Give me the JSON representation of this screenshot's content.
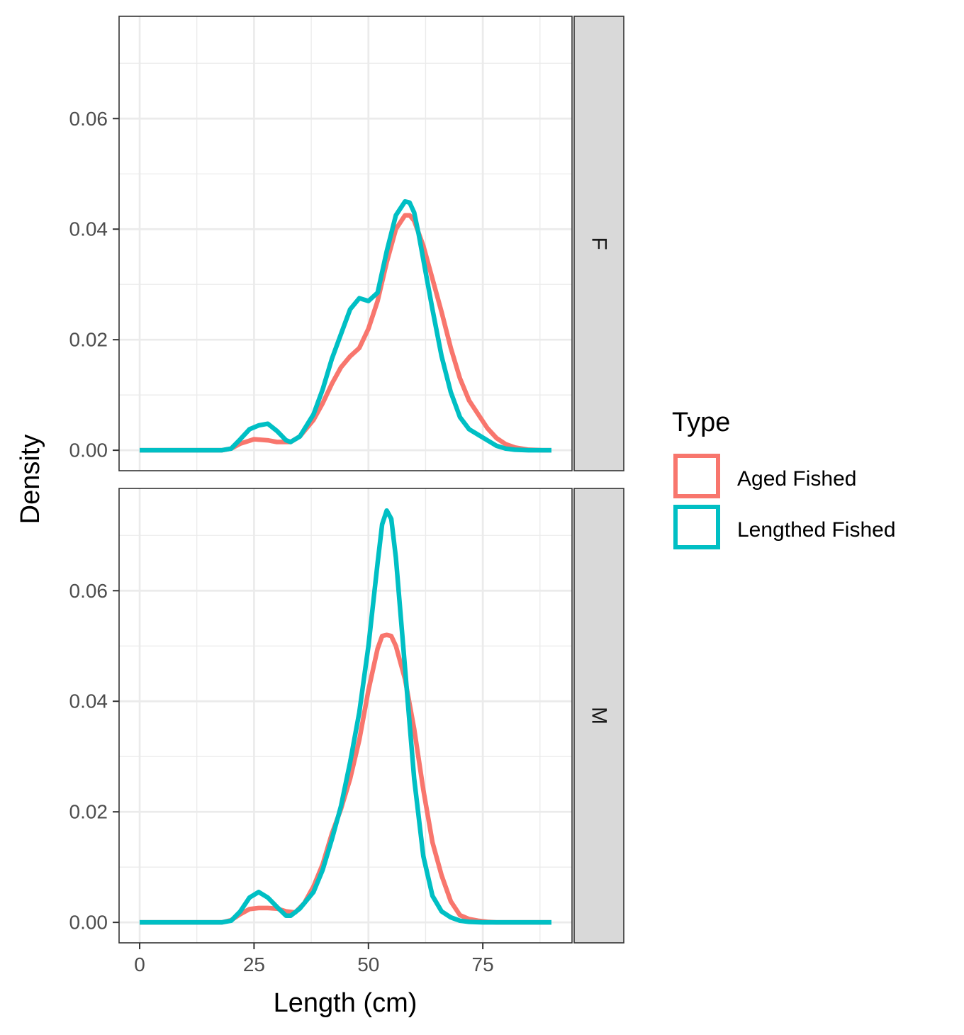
{
  "chart_data": {
    "type": "line",
    "subtype": "density",
    "xlabel": "Length (cm)",
    "ylabel": "Density",
    "xlim": [
      -4.5,
      94.5
    ],
    "x_ticks": [
      0,
      25,
      50,
      75
    ],
    "x_tick_labels": [
      "0",
      "25",
      "50",
      "75"
    ],
    "y_ticks": [
      0,
      0.02,
      0.04,
      0.06
    ],
    "y_tick_labels": [
      "0.00",
      "0.02",
      "0.04",
      "0.06"
    ],
    "grid": true,
    "legend": {
      "title": "Type",
      "placement": "right",
      "entries": [
        {
          "label": "Aged Fished",
          "color": "#F8766D"
        },
        {
          "label": "Lengthed Fished",
          "color": "#00BFC4"
        }
      ]
    },
    "facets": [
      {
        "strip": "F",
        "ylim": [
          -0.0037,
          0.0785
        ],
        "series": [
          {
            "name": "Aged Fished",
            "color": "#F8766D",
            "x": [
              0,
              5,
              10,
              15,
              18,
              20,
              22,
              25,
              28,
              30,
              33,
              35,
              38,
              40,
              42,
              44,
              46,
              48,
              50,
              52,
              54,
              56,
              58,
              59,
              60,
              62,
              64,
              66,
              68,
              70,
              72,
              74,
              76,
              78,
              80,
              82,
              85,
              88,
              90
            ],
            "y": [
              0,
              0,
              0,
              0,
              0,
              0.0003,
              0.0012,
              0.002,
              0.0018,
              0.0015,
              0.0015,
              0.0025,
              0.0055,
              0.0085,
              0.012,
              0.015,
              0.017,
              0.0185,
              0.022,
              0.027,
              0.034,
              0.04,
              0.0425,
              0.0425,
              0.0415,
              0.037,
              0.031,
              0.025,
              0.0185,
              0.013,
              0.009,
              0.0065,
              0.004,
              0.0022,
              0.0011,
              0.0005,
              0.0001,
              0,
              0
            ]
          },
          {
            "name": "Lengthed Fished",
            "color": "#00BFC4",
            "x": [
              0,
              5,
              10,
              15,
              18,
              20,
              22,
              24,
              26,
              28,
              30,
              32,
              33,
              35,
              38,
              40,
              42,
              44,
              46,
              48,
              50,
              52,
              54,
              56,
              58,
              59,
              60,
              61,
              62,
              64,
              66,
              68,
              70,
              72,
              74,
              76,
              78,
              80,
              82,
              85,
              88,
              90
            ],
            "y": [
              0,
              0,
              0,
              0,
              0,
              0.0003,
              0.002,
              0.0038,
              0.0045,
              0.0048,
              0.0035,
              0.0018,
              0.0015,
              0.0025,
              0.0065,
              0.011,
              0.0165,
              0.021,
              0.0255,
              0.0275,
              0.027,
              0.0285,
              0.036,
              0.0425,
              0.045,
              0.0448,
              0.043,
              0.039,
              0.0345,
              0.0255,
              0.017,
              0.0105,
              0.006,
              0.0038,
              0.0028,
              0.0018,
              0.0008,
              0.0003,
              0.0001,
              0,
              0,
              0
            ]
          }
        ]
      },
      {
        "strip": "M",
        "ylim": [
          -0.0037,
          0.0785
        ],
        "series": [
          {
            "name": "Aged Fished",
            "color": "#F8766D",
            "x": [
              0,
              5,
              10,
              15,
              18,
              20,
              22,
              24,
              26,
              28,
              30,
              32,
              34,
              36,
              38,
              40,
              42,
              44,
              46,
              48,
              50,
              52,
              53,
              54,
              55,
              56,
              58,
              60,
              62,
              64,
              66,
              68,
              70,
              72,
              74,
              76,
              78,
              80,
              85,
              90
            ],
            "y": [
              0,
              0,
              0,
              0,
              0,
              0.0004,
              0.0015,
              0.0024,
              0.0026,
              0.0026,
              0.0025,
              0.002,
              0.0018,
              0.0035,
              0.0065,
              0.0105,
              0.016,
              0.0205,
              0.026,
              0.033,
              0.042,
              0.0495,
              0.0518,
              0.052,
              0.0518,
              0.05,
              0.044,
              0.035,
              0.024,
              0.0145,
              0.0085,
              0.0038,
              0.0013,
              0.0006,
              0.0003,
              0.0001,
              0,
              0,
              0,
              0
            ]
          },
          {
            "name": "Lengthed Fished",
            "color": "#00BFC4",
            "x": [
              0,
              5,
              10,
              15,
              18,
              20,
              22,
              24,
              26,
              28,
              30,
              32,
              33,
              35,
              38,
              40,
              42,
              44,
              46,
              48,
              50,
              52,
              53,
              54,
              55,
              56,
              58,
              60,
              62,
              64,
              66,
              68,
              70,
              72,
              75,
              80,
              85,
              90
            ],
            "y": [
              0,
              0,
              0,
              0,
              0,
              0.0003,
              0.002,
              0.0045,
              0.0055,
              0.0045,
              0.0028,
              0.0012,
              0.0012,
              0.0025,
              0.0055,
              0.0095,
              0.015,
              0.021,
              0.029,
              0.038,
              0.05,
              0.065,
              0.072,
              0.0745,
              0.073,
              0.066,
              0.046,
              0.026,
              0.012,
              0.0048,
              0.002,
              0.0009,
              0.0003,
              0.0001,
              0,
              0,
              0,
              0
            ]
          }
        ]
      }
    ]
  }
}
